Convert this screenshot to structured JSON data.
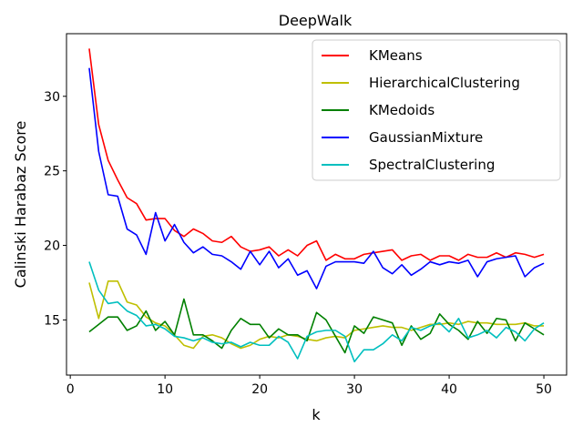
{
  "chart_data": {
    "type": "line",
    "title": "DeepWalk",
    "xlabel": "k",
    "ylabel": "Calinski Harabaz Score",
    "xlim": [
      -0.4,
      52.4
    ],
    "ylim": [
      11.3,
      34.2
    ],
    "xticks": [
      0,
      10,
      20,
      30,
      40,
      50
    ],
    "yticks": [
      15,
      20,
      25,
      30
    ],
    "grid": false,
    "legend_position": "top-right",
    "x": [
      2,
      3,
      4,
      5,
      6,
      7,
      8,
      9,
      10,
      11,
      12,
      13,
      14,
      15,
      16,
      17,
      18,
      19,
      20,
      21,
      22,
      23,
      24,
      25,
      26,
      27,
      28,
      29,
      30,
      31,
      32,
      33,
      34,
      35,
      36,
      37,
      38,
      39,
      40,
      41,
      42,
      43,
      44,
      45,
      46,
      47,
      48,
      49,
      50
    ],
    "series": [
      {
        "name": "KMeans",
        "color": "#ff0000",
        "values": [
          33.2,
          28.1,
          25.7,
          24.4,
          23.2,
          22.8,
          21.7,
          21.8,
          21.8,
          21.0,
          20.6,
          21.1,
          20.8,
          20.3,
          20.2,
          20.6,
          19.9,
          19.6,
          19.7,
          19.9,
          19.3,
          19.7,
          19.3,
          20.0,
          20.3,
          19.0,
          19.4,
          19.1,
          19.1,
          19.4,
          19.5,
          19.6,
          19.7,
          19.0,
          19.3,
          19.4,
          19.0,
          19.3,
          19.3,
          19.0,
          19.4,
          19.2,
          19.2,
          19.5,
          19.2,
          19.5,
          19.4,
          19.2,
          19.4
        ]
      },
      {
        "name": "HierarchicalClustering",
        "color": "#bfbf00",
        "values": [
          17.5,
          15.1,
          17.6,
          17.6,
          16.2,
          16.0,
          15.2,
          14.8,
          14.6,
          14.0,
          13.3,
          13.1,
          13.9,
          14.0,
          13.8,
          13.4,
          13.1,
          13.3,
          13.7,
          13.9,
          13.8,
          14.0,
          13.9,
          13.7,
          13.6,
          13.8,
          13.9,
          13.8,
          14.3,
          14.4,
          14.5,
          14.6,
          14.5,
          14.5,
          14.3,
          14.5,
          14.7,
          14.7,
          14.8,
          14.7,
          14.9,
          14.8,
          14.8,
          14.7,
          14.7,
          14.7,
          14.8,
          14.6,
          14.6
        ]
      },
      {
        "name": "KMedoids",
        "color": "#008000",
        "values": [
          14.2,
          14.7,
          15.2,
          15.2,
          14.3,
          14.6,
          15.6,
          14.3,
          14.9,
          14.0,
          16.4,
          14.0,
          14.0,
          13.6,
          13.1,
          14.3,
          15.1,
          14.7,
          14.7,
          13.8,
          14.4,
          14.0,
          14.0,
          13.6,
          15.5,
          15.0,
          13.9,
          12.8,
          14.6,
          14.1,
          15.2,
          15.0,
          14.8,
          13.3,
          14.6,
          13.7,
          14.1,
          15.4,
          14.7,
          14.3,
          13.7,
          14.9,
          14.1,
          15.1,
          15.0,
          13.6,
          14.8,
          14.4,
          14.0
        ]
      },
      {
        "name": "GaussianMixture",
        "color": "#0000ff",
        "values": [
          31.9,
          26.3,
          23.4,
          23.3,
          21.1,
          20.7,
          19.4,
          22.2,
          20.3,
          21.4,
          20.2,
          19.5,
          19.9,
          19.4,
          19.3,
          18.9,
          18.4,
          19.6,
          18.7,
          19.6,
          18.5,
          19.1,
          18.0,
          18.3,
          17.1,
          18.6,
          18.9,
          18.9,
          18.9,
          18.8,
          19.6,
          18.5,
          18.1,
          18.7,
          18.0,
          18.4,
          18.9,
          18.7,
          18.9,
          18.8,
          19.0,
          17.9,
          18.9,
          19.1,
          19.2,
          19.3,
          17.9,
          18.5,
          18.8
        ]
      },
      {
        "name": "SpectralClustering",
        "color": "#00bfbf",
        "values": [
          18.9,
          17.0,
          16.1,
          16.2,
          15.6,
          15.3,
          14.6,
          14.7,
          14.4,
          13.9,
          13.8,
          13.6,
          13.8,
          13.5,
          13.4,
          13.5,
          13.2,
          13.5,
          13.3,
          13.3,
          13.9,
          13.5,
          12.4,
          13.9,
          14.2,
          14.3,
          14.3,
          13.9,
          12.2,
          13.0,
          13.0,
          13.4,
          14.0,
          13.6,
          14.5,
          14.3,
          14.6,
          14.8,
          14.2,
          15.1,
          13.8,
          14.0,
          14.3,
          13.8,
          14.5,
          14.2,
          13.6,
          14.4,
          14.8
        ]
      }
    ]
  }
}
